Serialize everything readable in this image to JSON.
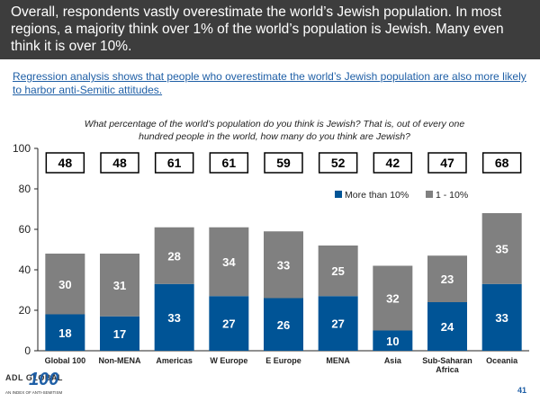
{
  "headline": "Overall, respondents vastly overestimate the world’s Jewish population. In most regions, a majority think over 1% of the world’s population is Jewish. Many even think it is over 10%.",
  "subtitle": "Regression analysis shows that people who overestimate the world’s Jewish population are also more likely to harbor anti-Semitic attitudes.",
  "logo": {
    "top": "ADL GLOBAL",
    "num": "100",
    "tagline": "AN INDEX OF ANTI-SEMITISM"
  },
  "page_number": "41",
  "colors": {
    "more_than_10": "#005496",
    "one_to_ten": "#808080",
    "header_bg": "#3d3d3d",
    "link": "#1f5fa6"
  },
  "chart_data": {
    "type": "bar",
    "stacked": true,
    "title": "What percentage of the world’s population do you think is Jewish? That is, out of every one hundred people in the world, how many do you think are Jewish?",
    "categories": [
      "Global 100",
      "Non-MENA",
      "Americas",
      "W Europe",
      "E Europe",
      "MENA",
      "Asia",
      "Sub-Saharan Africa",
      "Oceania"
    ],
    "series": [
      {
        "name": "More than 10%",
        "values": [
          18,
          17,
          33,
          27,
          26,
          27,
          10,
          24,
          33
        ]
      },
      {
        "name": "1 - 10%",
        "values": [
          30,
          31,
          28,
          34,
          33,
          25,
          32,
          23,
          35
        ]
      }
    ],
    "totals": [
      48,
      48,
      61,
      61,
      59,
      52,
      42,
      47,
      68
    ],
    "ylim": [
      0,
      100
    ],
    "yticks": [
      0,
      20,
      40,
      60,
      80,
      100
    ],
    "xlabel": "",
    "ylabel": "",
    "legend_position": "top-right"
  }
}
